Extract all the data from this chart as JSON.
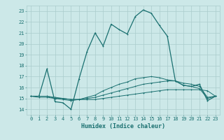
{
  "xlabel": "Humidex (Indice chaleur)",
  "background_color": "#cce8e8",
  "grid_color": "#aacccc",
  "line_color": "#1a7070",
  "x_ticks": [
    0,
    1,
    2,
    3,
    4,
    5,
    6,
    7,
    8,
    9,
    10,
    11,
    12,
    13,
    14,
    15,
    16,
    17,
    18,
    19,
    20,
    21,
    22,
    23
  ],
  "y_ticks": [
    14,
    15,
    16,
    17,
    18,
    19,
    20,
    21,
    22,
    23
  ],
  "xlim": [
    -0.5,
    23.5
  ],
  "ylim": [
    13.5,
    23.5
  ],
  "series1_x": [
    0,
    1,
    2,
    3,
    4,
    5,
    6,
    7,
    8,
    9,
    10,
    11,
    12,
    13,
    14,
    15,
    16,
    17,
    18,
    19,
    20,
    21,
    22,
    23
  ],
  "series1_y": [
    15.2,
    15.2,
    17.7,
    14.7,
    14.6,
    14.0,
    16.8,
    19.3,
    21.0,
    19.8,
    21.8,
    21.3,
    20.9,
    22.5,
    23.1,
    22.8,
    21.7,
    20.7,
    16.6,
    16.2,
    16.1,
    16.3,
    14.8,
    15.2
  ],
  "series2_x": [
    0,
    1,
    2,
    3,
    4,
    5,
    6,
    7,
    8,
    9,
    10,
    11,
    12,
    13,
    14,
    15,
    16,
    17,
    18,
    19,
    20,
    21,
    22,
    23
  ],
  "series2_y": [
    15.2,
    15.1,
    15.1,
    15.0,
    15.0,
    14.9,
    14.9,
    14.9,
    14.9,
    15.0,
    15.1,
    15.2,
    15.3,
    15.4,
    15.5,
    15.6,
    15.7,
    15.8,
    15.8,
    15.8,
    15.8,
    15.8,
    15.7,
    15.2
  ],
  "series3_x": [
    0,
    1,
    2,
    3,
    4,
    5,
    6,
    7,
    8,
    9,
    10,
    11,
    12,
    13,
    14,
    15,
    16,
    17,
    18,
    19,
    20,
    21,
    22,
    23
  ],
  "series3_y": [
    15.2,
    15.2,
    15.2,
    15.1,
    15.0,
    14.9,
    14.9,
    15.0,
    15.1,
    15.3,
    15.5,
    15.7,
    15.9,
    16.1,
    16.3,
    16.4,
    16.5,
    16.6,
    16.6,
    16.4,
    16.3,
    16.1,
    15.1,
    15.2
  ],
  "series4_x": [
    0,
    1,
    2,
    3,
    4,
    5,
    6,
    7,
    8,
    9,
    10,
    11,
    12,
    13,
    14,
    15,
    16,
    17,
    18,
    19,
    20,
    21,
    22,
    23
  ],
  "series4_y": [
    15.2,
    15.2,
    15.2,
    15.0,
    14.9,
    14.8,
    14.9,
    15.1,
    15.3,
    15.7,
    16.0,
    16.3,
    16.5,
    16.8,
    16.9,
    17.0,
    16.9,
    16.7,
    16.6,
    16.2,
    16.1,
    15.9,
    15.0,
    15.2
  ],
  "xlabel_fontsize": 6,
  "tick_fontsize": 5,
  "linewidth_main": 0.9,
  "linewidth_sub": 0.7,
  "marker_size": 2.0
}
